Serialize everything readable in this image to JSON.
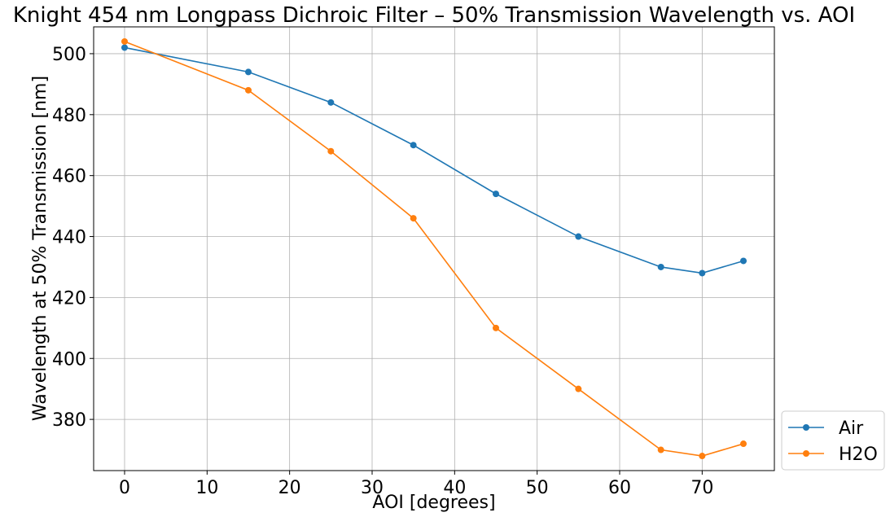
{
  "chart_data": {
    "type": "line",
    "title": "Knight 454 nm Longpass Dichroic Filter – 50% Transmission Wavelength vs. AOI",
    "xlabel": "AOI [degrees]",
    "ylabel": "Wavelength at 50% Transmission [nm]",
    "x": [
      0,
      15,
      25,
      35,
      45,
      55,
      65,
      70,
      75
    ],
    "series": [
      {
        "name": "Air",
        "color": "#1f77b4",
        "values": [
          502,
          494,
          484,
          470,
          454,
          440,
          430,
          428,
          432
        ]
      },
      {
        "name": "H2O",
        "color": "#ff7f0e",
        "values": [
          504,
          488,
          468,
          446,
          410,
          390,
          370,
          368,
          372
        ]
      }
    ],
    "xlim": [
      -3.75,
      78.75
    ],
    "ylim": [
      363.2,
      508.8
    ],
    "xticks": [
      0,
      10,
      20,
      30,
      40,
      50,
      60,
      70
    ],
    "yticks": [
      380,
      400,
      420,
      440,
      460,
      480,
      500
    ],
    "grid": true,
    "legend_position": "outside-bottom-right",
    "marker": "circle"
  }
}
